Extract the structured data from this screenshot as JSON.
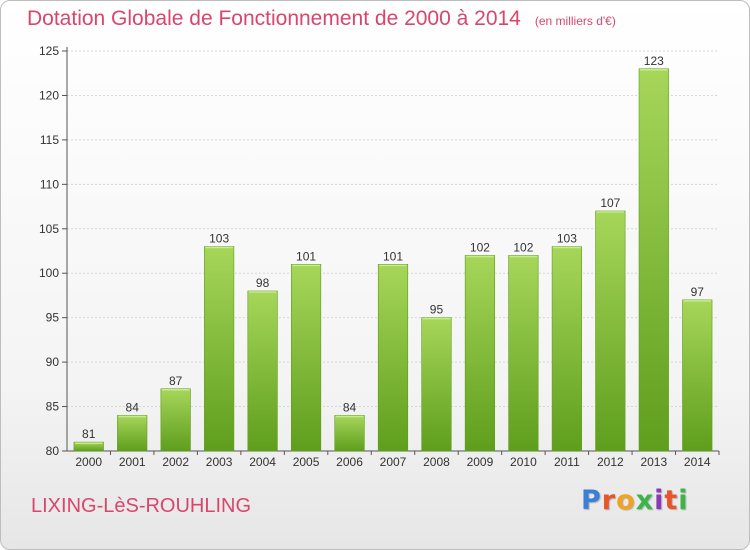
{
  "header": {
    "title": "Dotation Globale de Fonctionnement de 2000 à 2014",
    "unit": "(en milliers d'€)"
  },
  "footer": {
    "commune": "LIXING-LèS-ROUHLING",
    "logo": "Proxiti",
    "logo_colors": [
      "#3b7fd6",
      "#e8542c",
      "#f0a320",
      "#3bb54a",
      "#8a3ab9",
      "#e8542c",
      "#3bb54a"
    ]
  },
  "chart_data": {
    "type": "bar",
    "title": "Dotation Globale de Fonctionnement de 2000 à 2014",
    "subtitle": "(en milliers d'€)",
    "categories": [
      "2000",
      "2001",
      "2002",
      "2003",
      "2004",
      "2005",
      "2006",
      "2007",
      "2008",
      "2009",
      "2010",
      "2011",
      "2012",
      "2013",
      "2014"
    ],
    "values": [
      81,
      84,
      87,
      103,
      98,
      101,
      84,
      101,
      95,
      102,
      102,
      103,
      107,
      123,
      97
    ],
    "ylim": [
      80,
      125
    ],
    "yticks": [
      80,
      85,
      90,
      95,
      100,
      105,
      110,
      115,
      120,
      125
    ],
    "grid": true,
    "bar_color": "#8cc63f",
    "bar_color_dark": "#5e9c1c"
  }
}
